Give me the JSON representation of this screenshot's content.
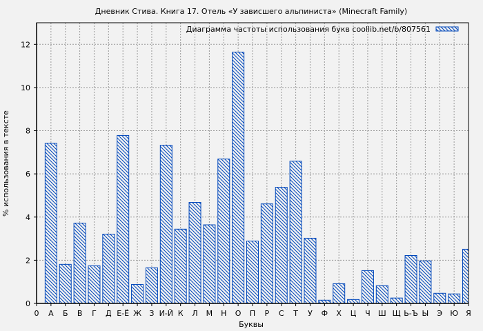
{
  "chart_data": {
    "type": "bar",
    "title": "Дневник Стива. Книга 17. Отель «У зависшего альпиниста» (Minecraft Family)",
    "xlabel": "Буквы",
    "ylabel": "% использования в тексте",
    "legend": {
      "label": "Диаграмма частоты использования букв coollib.net/b/807561",
      "placement": "top-right"
    },
    "x_tick_labels": [
      "0",
      "А",
      "Б",
      "В",
      "Г",
      "Д",
      "Е-Ё",
      "Ж",
      "З",
      "И-Й",
      "К",
      "Л",
      "М",
      "Н",
      "О",
      "П",
      "Р",
      "С",
      "Т",
      "У",
      "Ф",
      "Х",
      "Ц",
      "Ч",
      "Ш",
      "Щ",
      "Ь-Ъ",
      "Ы",
      "Э",
      "Ю",
      "Я"
    ],
    "categories": [
      "А",
      "Б",
      "В",
      "Г",
      "Д",
      "Е-Ё",
      "Ж",
      "З",
      "И-Й",
      "К",
      "Л",
      "М",
      "Н",
      "О",
      "П",
      "Р",
      "С",
      "Т",
      "У",
      "Ф",
      "Х",
      "Ц",
      "Ч",
      "Ш",
      "Щ",
      "Ь-Ъ",
      "Ы",
      "Э",
      "Ю",
      "Я"
    ],
    "values": [
      7.42,
      1.81,
      3.72,
      1.74,
      3.21,
      7.78,
      0.88,
      1.65,
      7.33,
      3.44,
      4.68,
      3.64,
      6.69,
      11.64,
      2.89,
      4.61,
      5.38,
      6.59,
      3.02,
      0.15,
      0.91,
      0.18,
      1.52,
      0.82,
      0.25,
      2.22,
      1.97,
      0.47,
      0.44,
      2.51
    ],
    "y_ticks": [
      0,
      2,
      4,
      6,
      8,
      10,
      12
    ],
    "ylim": [
      0,
      13
    ],
    "grid": true,
    "colors": {
      "bar": "#0047bb",
      "background": "#f2f2f2",
      "grid": "#999999"
    }
  }
}
